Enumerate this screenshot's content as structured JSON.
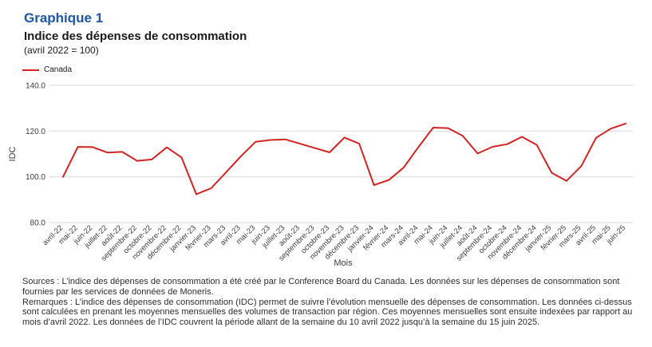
{
  "header": {
    "chart_label": "Graphique 1",
    "title": "Indice des dépenses de consommation",
    "subtitle": "(avril 2022 = 100)"
  },
  "legend": {
    "series_label": "Canada"
  },
  "colors": {
    "title_blue": "#1f57a8",
    "line_red": "#d22421",
    "gridline": "#d9d9d9",
    "heading_text": "#1a1a1a",
    "axis_text": "#3c3c3c",
    "footer_text": "#2e2e2e"
  },
  "chart_data": {
    "type": "line",
    "title": "Indice des dépenses de consommation (avril 2022 = 100)",
    "xlabel": "Mois",
    "ylabel": "IDC",
    "ylim": [
      80,
      140
    ],
    "yticks": [
      80,
      100,
      120,
      140
    ],
    "ytick_labels": [
      "80.0",
      "100.0",
      "120.0",
      "140.0"
    ],
    "grid": true,
    "legend_position": "top-left",
    "categories": [
      "avril-22",
      "mai-22",
      "juin-22",
      "juillet-22",
      "août-22",
      "septembre-22",
      "octobre-22",
      "novembre-22",
      "décembre-22",
      "janvier-23",
      "février-23",
      "mars-23",
      "avril-23",
      "mai-23",
      "juin-23",
      "juillet-23",
      "août-23",
      "septembre-23",
      "octobre-23",
      "novembre-23",
      "décembre-23",
      "janvier-24",
      "février-24",
      "mars-24",
      "avril-24",
      "mai-24",
      "juin-24",
      "juillet-24",
      "août-24",
      "septembre-24",
      "octobre-24",
      "novembre-24",
      "décembre-24",
      "janvier-25",
      "février-25",
      "mars-25",
      "avril-25",
      "mai-25",
      "juin-25"
    ],
    "series": [
      {
        "name": "Canada",
        "color": "#d22421",
        "values": [
          100.0,
          113.1,
          113.0,
          110.6,
          110.9,
          107.0,
          107.6,
          112.9,
          108.5,
          92.4,
          95.0,
          101.9,
          108.9,
          115.3,
          116.1,
          116.4,
          114.5,
          112.6,
          110.7,
          117.2,
          114.5,
          96.4,
          98.6,
          104.0,
          113.0,
          121.5,
          121.3,
          117.9,
          110.2,
          113.1,
          114.3,
          117.5,
          113.9,
          101.8,
          98.2,
          104.7,
          117.1,
          121.1,
          123.3
        ]
      }
    ]
  },
  "footer": {
    "sources": "Sources : L’indice des dépenses de consommation a été créé par le Conference Board du Canada. Les données sur les dépenses de consommation sont fournies par les services de données de Moneris.",
    "remarks": "Remarques : L’indice des dépenses de consommation (IDC) permet de suivre l’évolution mensuelle des dépenses de consommation. Les données ci-dessus sont calculées en prenant les moyennes mensuelles des volumes de transaction par région. Ces moyennes mensuelles sont ensuite indexées par rapport au mois d’avril 2022. Les données de l’IDC couvrent la période allant de la semaine du 10 avril 2022 jusqu’à la semaine du 15 juin 2025."
  }
}
